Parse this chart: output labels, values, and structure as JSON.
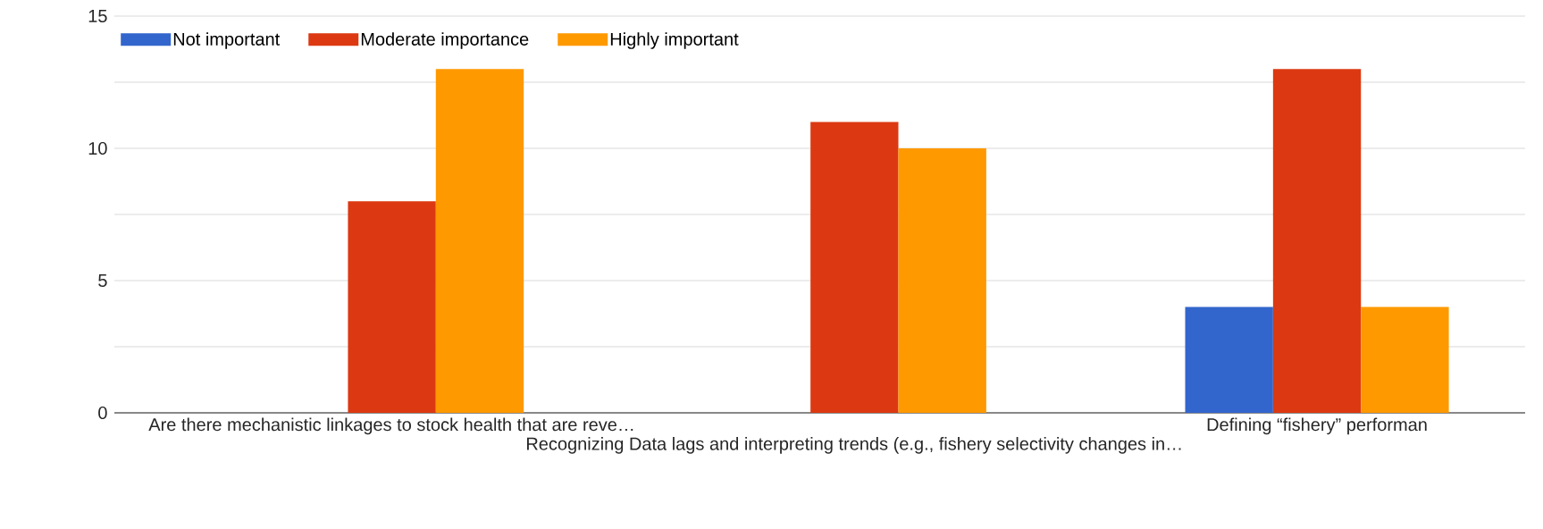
{
  "chart_data": {
    "type": "bar",
    "categories": [
      "Are there mechanistic linkages to stock health that are reve…",
      "Recognizing Data lags and interpreting trends (e.g., fishery selectivity changes in…",
      "Defining “fishery” performan"
    ],
    "series": [
      {
        "name": "Not important",
        "color": "#3366cc",
        "values": [
          0,
          0,
          4
        ]
      },
      {
        "name": "Moderate importance",
        "color": "#dc3912",
        "values": [
          8,
          11,
          13
        ]
      },
      {
        "name": "Highly important",
        "color": "#ff9900",
        "values": [
          13,
          10,
          4
        ]
      }
    ],
    "ylim": [
      0,
      15
    ],
    "yticks": [
      0,
      {
        "value": 2.5,
        "label": null
      },
      5,
      {
        "value": 7.5,
        "label": null
      },
      10,
      {
        "value": 12.5,
        "label": null
      },
      15
    ],
    "grid": "y",
    "legend": "top left"
  }
}
